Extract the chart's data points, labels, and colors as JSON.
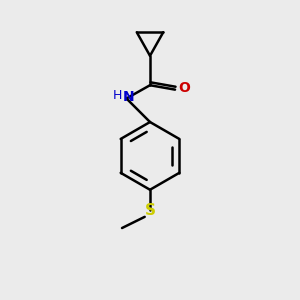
{
  "background_color": "#ebebeb",
  "bond_color": "#000000",
  "N_color": "#0000cc",
  "O_color": "#cc0000",
  "S_color": "#cccc00",
  "line_width": 1.8,
  "figsize": [
    3.0,
    3.0
  ],
  "dpi": 100,
  "xlim": [
    0,
    10
  ],
  "ylim": [
    0,
    10
  ]
}
